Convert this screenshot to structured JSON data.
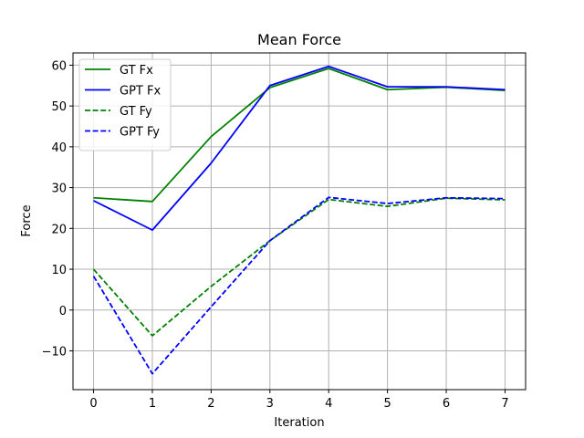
{
  "chart_data": {
    "type": "line",
    "title": "Mean Force",
    "xlabel": "Iteration",
    "ylabel": "Force",
    "x": [
      0,
      1,
      2,
      3,
      4,
      5,
      6,
      7
    ],
    "xlim": [
      -0.35,
      7.35
    ],
    "ylim": [
      -19.5,
      63
    ],
    "xticks": [
      0,
      1,
      2,
      3,
      4,
      5,
      6,
      7
    ],
    "yticks": [
      -10,
      0,
      10,
      20,
      30,
      40,
      50,
      60
    ],
    "grid": true,
    "legend_position": "top-left",
    "series": [
      {
        "name": "GT Fx",
        "color": "#008000",
        "style": "solid",
        "values": [
          27.5,
          26.6,
          42.5,
          54.5,
          59.2,
          54.0,
          54.6,
          53.8
        ]
      },
      {
        "name": "GPT Fx",
        "color": "#0000ff",
        "style": "solid",
        "values": [
          26.8,
          19.6,
          36.0,
          55.0,
          59.7,
          54.7,
          54.7,
          54.0
        ]
      },
      {
        "name": "GT Fy",
        "color": "#008000",
        "style": "dashed",
        "values": [
          10.0,
          -6.3,
          5.8,
          17.0,
          27.1,
          25.4,
          27.4,
          27.0
        ]
      },
      {
        "name": "GPT Fy",
        "color": "#0000ff",
        "style": "dashed",
        "values": [
          8.3,
          -15.6,
          0.8,
          17.0,
          27.6,
          26.1,
          27.5,
          27.3
        ]
      }
    ]
  }
}
